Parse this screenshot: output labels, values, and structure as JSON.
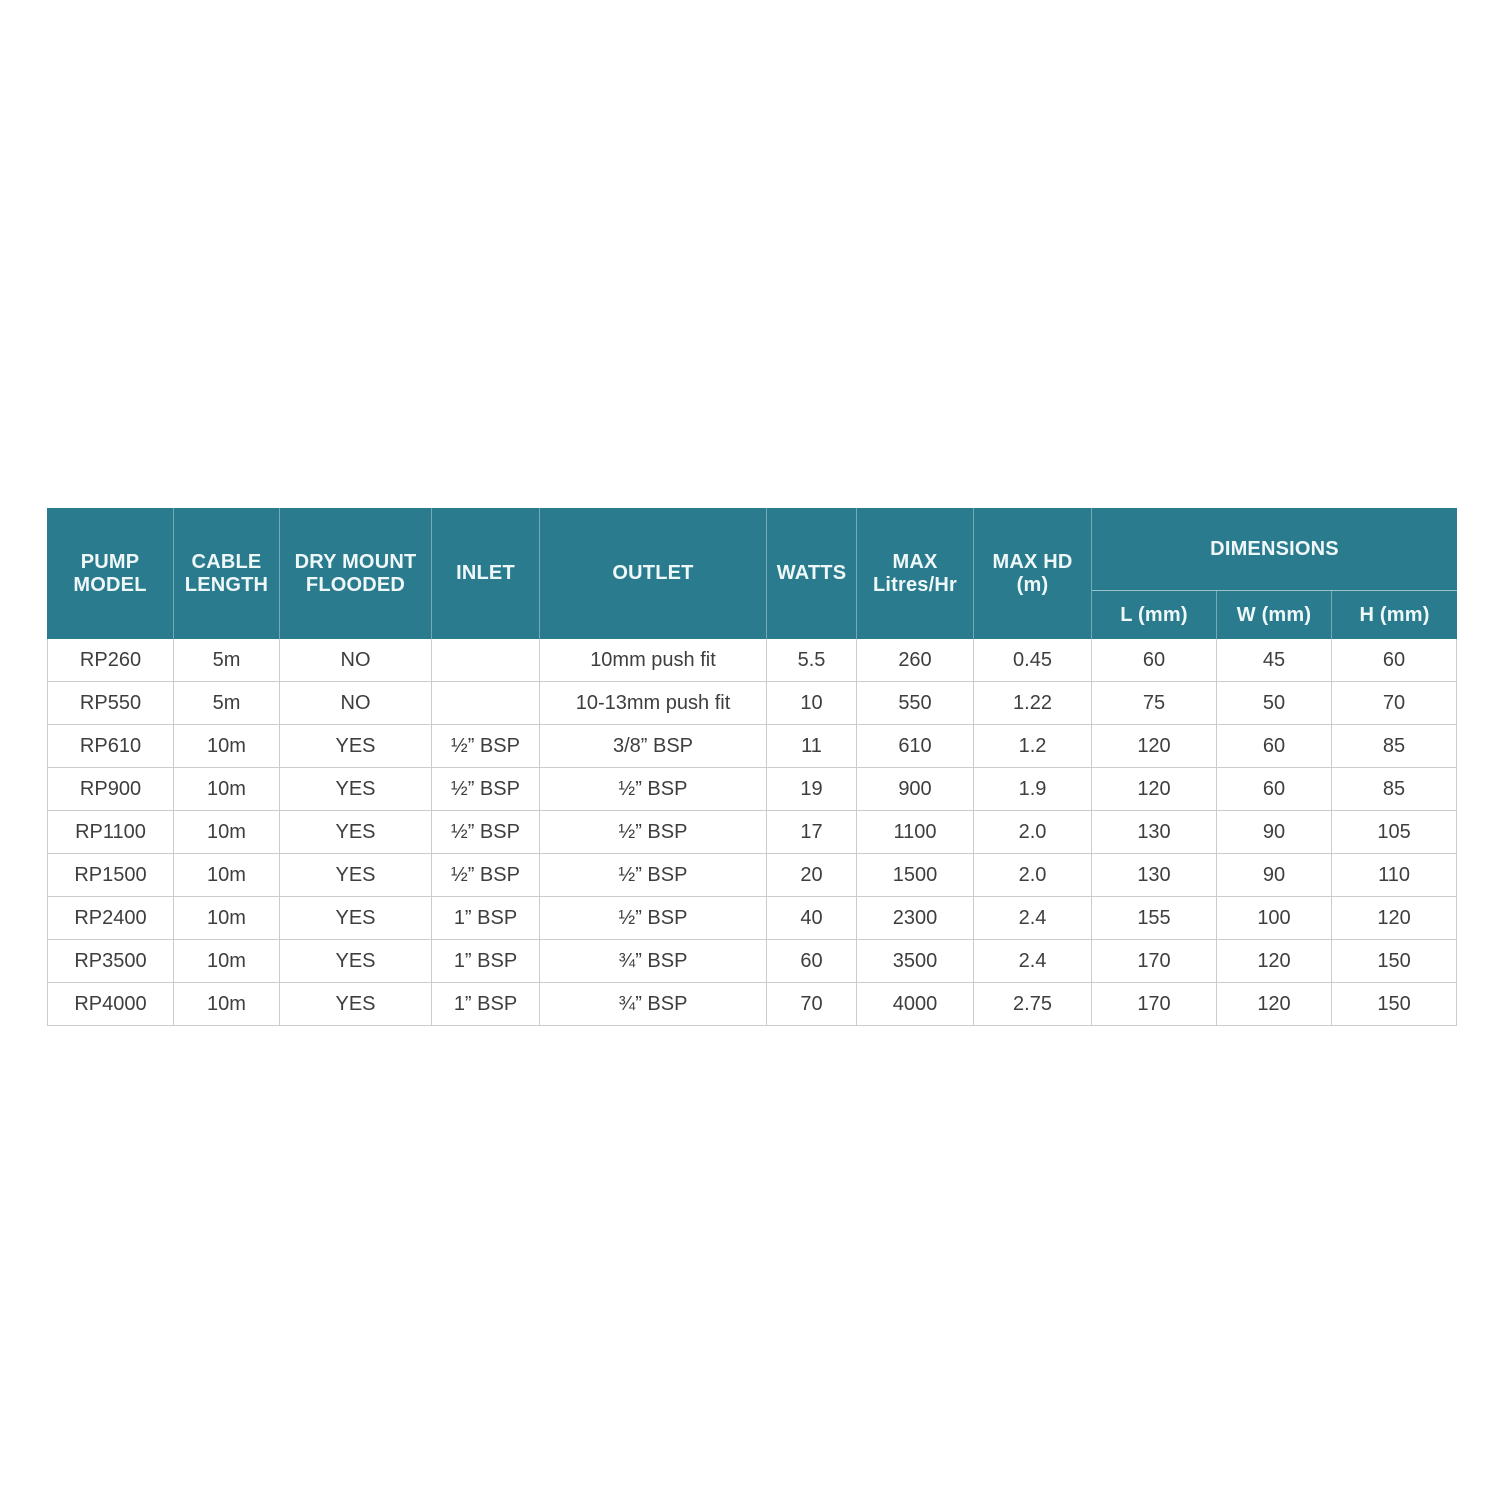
{
  "table": {
    "columns": [
      "PUMP\nMODEL",
      "CABLE\nLENGTH",
      "DRY MOUNT\nFLOODED",
      "INLET",
      "OUTLET",
      "WATTS",
      "MAX\nLitres/Hr",
      "MAX HD\n(m)",
      "DIMENSIONS"
    ],
    "sub_columns": [
      "L (mm)",
      "W (mm)",
      "H (mm)"
    ],
    "rows": [
      [
        "RP260",
        "5m",
        "NO",
        "",
        "10mm push fit",
        "5.5",
        "260",
        "0.45",
        "60",
        "45",
        "60"
      ],
      [
        "RP550",
        "5m",
        "NO",
        "",
        "10-13mm push fit",
        "10",
        "550",
        "1.22",
        "75",
        "50",
        "70"
      ],
      [
        "RP610",
        "10m",
        "YES",
        "½” BSP",
        "3/8” BSP",
        "11",
        "610",
        "1.2",
        "120",
        "60",
        "85"
      ],
      [
        "RP900",
        "10m",
        "YES",
        "½” BSP",
        "½” BSP",
        "19",
        "900",
        "1.9",
        "120",
        "60",
        "85"
      ],
      [
        "RP1100",
        "10m",
        "YES",
        "½” BSP",
        "½” BSP",
        "17",
        "1100",
        "2.0",
        "130",
        "90",
        "105"
      ],
      [
        "RP1500",
        "10m",
        "YES",
        "½” BSP",
        "½” BSP",
        "20",
        "1500",
        "2.0",
        "130",
        "90",
        "110"
      ],
      [
        "RP2400",
        "10m",
        "YES",
        "1” BSP",
        "½” BSP",
        "40",
        "2300",
        "2.4",
        "155",
        "100",
        "120"
      ],
      [
        "RP3500",
        "10m",
        "YES",
        "1” BSP",
        "¾” BSP",
        "60",
        "3500",
        "2.4",
        "170",
        "120",
        "150"
      ],
      [
        "RP4000",
        "10m",
        "YES",
        "1” BSP",
        "¾” BSP",
        "70",
        "4000",
        "2.75",
        "170",
        "120",
        "150"
      ]
    ],
    "colors": {
      "header_bg": "#2b7b8e",
      "header_text": "#eff8f9",
      "body_text": "#3e3e3e",
      "grid_line": "#cccccc"
    }
  }
}
